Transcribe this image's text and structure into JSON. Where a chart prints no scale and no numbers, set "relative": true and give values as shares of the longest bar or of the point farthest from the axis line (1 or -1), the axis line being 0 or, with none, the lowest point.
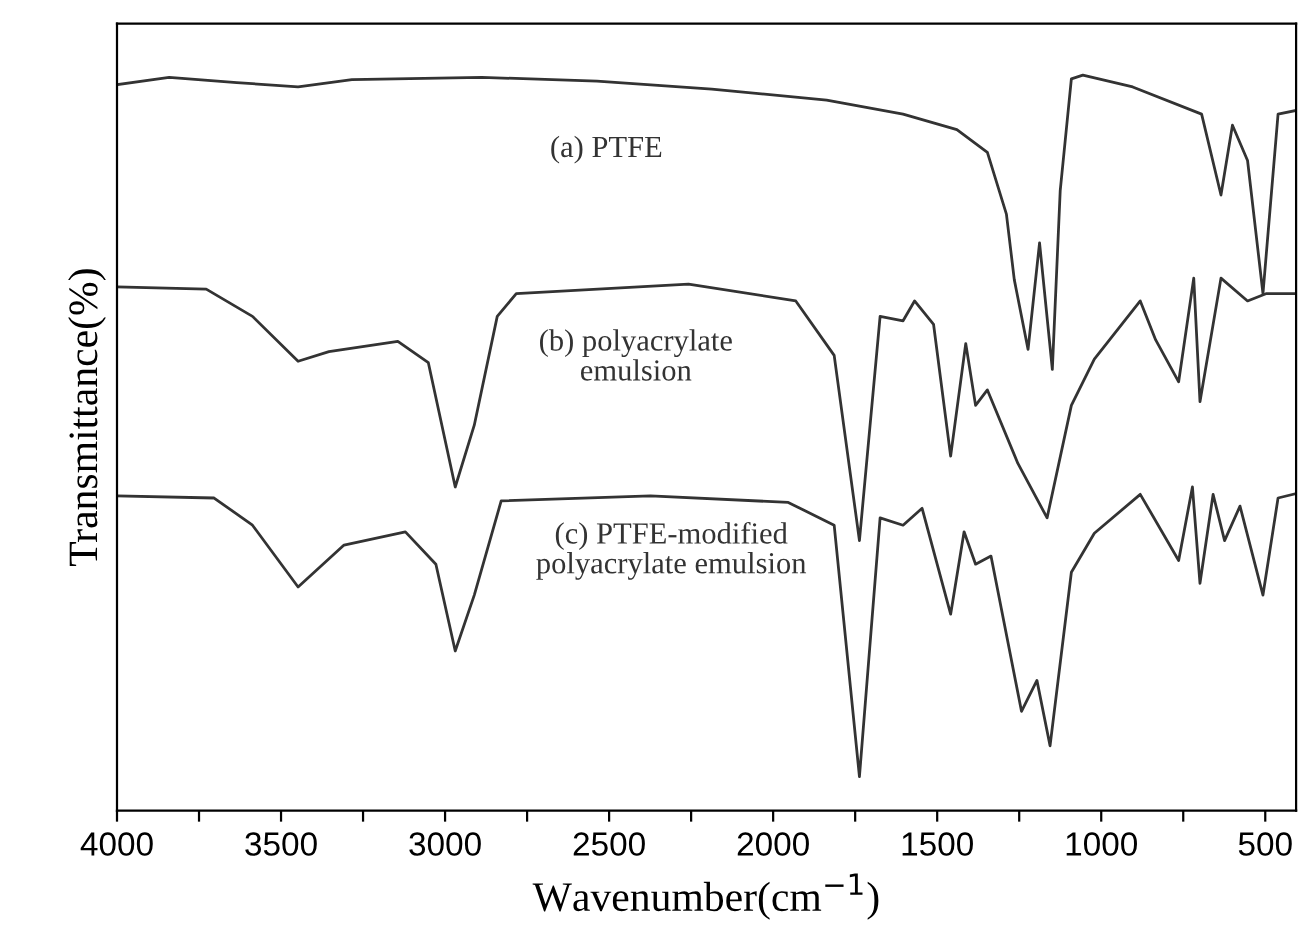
{
  "chart_data": {
    "type": "line",
    "relative": true,
    "xlabel": "Wavenumber(cm$^{−1}$)",
    "ylabel": "Transmittance(%)",
    "xlim": [
      4000,
      406
    ],
    "xticks": [
      4000,
      {
        "value": 3750,
        "label": null
      },
      3500,
      {
        "value": 3250,
        "label": null
      },
      3000,
      {
        "value": 2750,
        "label": null
      },
      2500,
      {
        "value": 2250,
        "label": null
      },
      2000,
      {
        "value": 1750,
        "label": null
      },
      1500,
      {
        "value": 1250,
        "label": null
      },
      1000,
      {
        "value": 750,
        "label": null
      },
      500
    ],
    "grid": false,
    "legend": false,
    "series": [
      {
        "name": "(a) PTFE",
        "color": "#333333",
        "x": [
          4000,
          3841,
          3635,
          3448,
          3284,
          2888,
          2537,
          2187,
          1837,
          1604,
          1440,
          1347,
          1289,
          1265,
          1223,
          1188,
          1149,
          1125,
          1091,
          1056,
          904,
          694,
          635,
          600,
          554,
          507,
          461,
          406
        ],
        "values": [
          0.987,
          0.997,
          0.99,
          0.984,
          0.994,
          0.997,
          0.992,
          0.981,
          0.966,
          0.947,
          0.926,
          0.895,
          0.811,
          0.722,
          0.627,
          0.772,
          0.6,
          0.843,
          0.995,
          1.0,
          0.984,
          0.947,
          0.837,
          0.932,
          0.884,
          0.703,
          0.947,
          0.952
        ]
      },
      {
        "name": "(b) polyacrylate\nemulsion",
        "color": "#333333",
        "x": [
          4000,
          3728,
          3587,
          3448,
          3354,
          3144,
          3051,
          2969,
          2911,
          2841,
          2783,
          2258,
          1931,
          1814,
          1737,
          1674,
          1604,
          1569,
          1511,
          1459,
          1413,
          1383,
          1347,
          1254,
          1165,
          1091,
          1021,
          881,
          834,
          764,
          718,
          699,
          635,
          554,
          496,
          406
        ],
        "values": [
          0.712,
          0.709,
          0.672,
          0.611,
          0.624,
          0.638,
          0.609,
          0.44,
          0.524,
          0.672,
          0.703,
          0.716,
          0.693,
          0.619,
          0.367,
          0.672,
          0.666,
          0.693,
          0.661,
          0.482,
          0.635,
          0.551,
          0.572,
          0.472,
          0.398,
          0.551,
          0.614,
          0.693,
          0.64,
          0.583,
          0.724,
          0.556,
          0.724,
          0.693,
          0.703,
          0.703
        ]
      },
      {
        "name": "(c) PTFE-modified\npolyacrylate emulsion",
        "color": "#333333",
        "x": [
          4000,
          3704,
          3587,
          3448,
          3308,
          3121,
          3028,
          2969,
          2911,
          2829,
          2374,
          1954,
          1814,
          1737,
          1674,
          1604,
          1546,
          1459,
          1418,
          1383,
          1336,
          1243,
          1196,
          1156,
          1091,
          1021,
          881,
          764,
          722,
          699,
          659,
          624,
          577,
          507,
          461,
          406
        ],
        "values": [
          0.428,
          0.425,
          0.388,
          0.304,
          0.361,
          0.379,
          0.335,
          0.217,
          0.293,
          0.421,
          0.428,
          0.419,
          0.388,
          0.046,
          0.398,
          0.388,
          0.411,
          0.267,
          0.379,
          0.335,
          0.346,
          0.135,
          0.177,
          0.088,
          0.324,
          0.377,
          0.43,
          0.34,
          0.44,
          0.309,
          0.43,
          0.367,
          0.414,
          0.293,
          0.425,
          0.431
        ]
      }
    ]
  }
}
